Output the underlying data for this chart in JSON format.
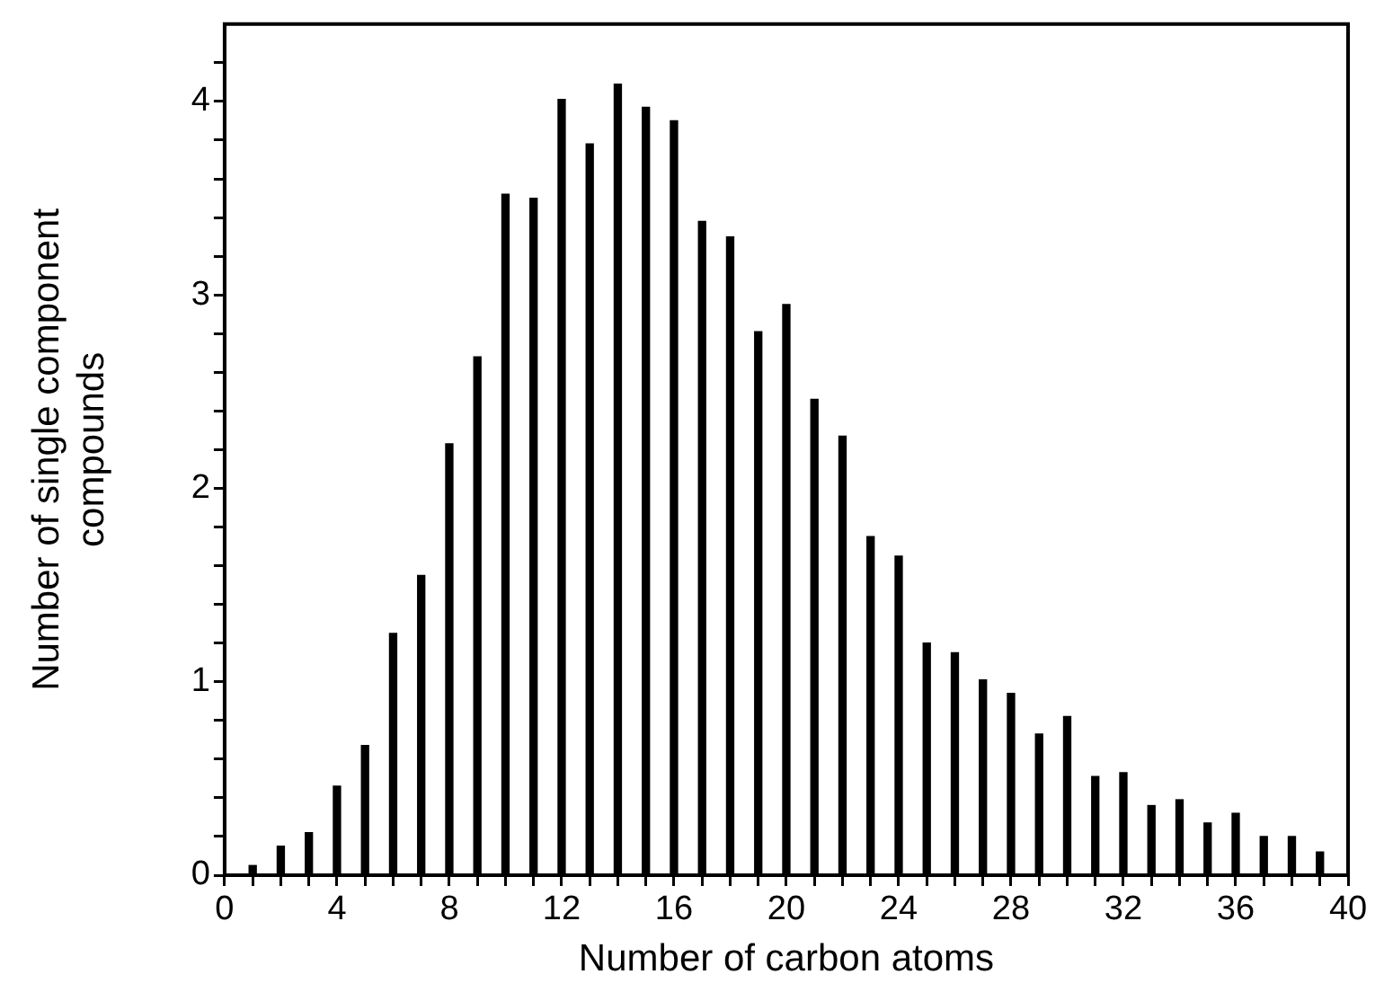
{
  "chart_data": {
    "type": "bar",
    "xlabel": "Number of carbon atoms",
    "ylabel": "Number of single component\ncompounds",
    "x": [
      1,
      2,
      3,
      4,
      5,
      6,
      7,
      8,
      9,
      10,
      11,
      12,
      13,
      14,
      15,
      16,
      17,
      18,
      19,
      20,
      21,
      22,
      23,
      24,
      25,
      26,
      27,
      28,
      29,
      30,
      31,
      32,
      33,
      34,
      35,
      36,
      37,
      38,
      39
    ],
    "values": [
      0.05,
      0.15,
      0.22,
      0.46,
      0.67,
      1.25,
      1.55,
      2.23,
      2.68,
      3.52,
      3.5,
      4.01,
      3.78,
      4.09,
      3.97,
      3.9,
      3.38,
      3.3,
      2.81,
      2.95,
      2.46,
      2.27,
      1.75,
      1.65,
      1.2,
      1.15,
      1.01,
      0.94,
      0.73,
      0.82,
      0.51,
      0.53,
      0.36,
      0.39,
      0.27,
      0.32,
      0.2,
      0.2,
      0.12
    ],
    "color": "#000000",
    "xlim": [
      0,
      40
    ],
    "ylim": [
      0,
      4.4
    ],
    "xticks": [
      0,
      {
        "value": 1,
        "label": null
      },
      {
        "value": 2,
        "label": null
      },
      {
        "value": 3,
        "label": null
      },
      4,
      {
        "value": 5,
        "label": null
      },
      {
        "value": 6,
        "label": null
      },
      {
        "value": 7,
        "label": null
      },
      8,
      {
        "value": 9,
        "label": null
      },
      {
        "value": 10,
        "label": null
      },
      {
        "value": 11,
        "label": null
      },
      12,
      {
        "value": 13,
        "label": null
      },
      {
        "value": 14,
        "label": null
      },
      {
        "value": 15,
        "label": null
      },
      16,
      {
        "value": 17,
        "label": null
      },
      {
        "value": 18,
        "label": null
      },
      {
        "value": 19,
        "label": null
      },
      20,
      {
        "value": 21,
        "label": null
      },
      {
        "value": 22,
        "label": null
      },
      {
        "value": 23,
        "label": null
      },
      24,
      {
        "value": 25,
        "label": null
      },
      {
        "value": 26,
        "label": null
      },
      {
        "value": 27,
        "label": null
      },
      28,
      {
        "value": 29,
        "label": null
      },
      {
        "value": 30,
        "label": null
      },
      {
        "value": 31,
        "label": null
      },
      32,
      {
        "value": 33,
        "label": null
      },
      {
        "value": 34,
        "label": null
      },
      {
        "value": 35,
        "label": null
      },
      36,
      {
        "value": 37,
        "label": null
      },
      {
        "value": 38,
        "label": null
      },
      {
        "value": 39,
        "label": null
      },
      40
    ],
    "yticks": [
      0,
      {
        "value": 0.2,
        "label": null
      },
      {
        "value": 0.4,
        "label": null
      },
      {
        "value": 0.6,
        "label": null
      },
      {
        "value": 0.8,
        "label": null
      },
      1,
      {
        "value": 1.2,
        "label": null
      },
      {
        "value": 1.4,
        "label": null
      },
      {
        "value": 1.6,
        "label": null
      },
      {
        "value": 1.8,
        "label": null
      },
      2,
      {
        "value": 2.2,
        "label": null
      },
      {
        "value": 2.4,
        "label": null
      },
      {
        "value": 2.6,
        "label": null
      },
      {
        "value": 2.8,
        "label": null
      },
      3,
      {
        "value": 3.2,
        "label": null
      },
      {
        "value": 3.4,
        "label": null
      },
      {
        "value": 3.6,
        "label": null
      },
      {
        "value": 3.8,
        "label": null
      },
      4,
      {
        "value": 4.2,
        "label": null
      }
    ],
    "grid": false,
    "legend": false
  }
}
